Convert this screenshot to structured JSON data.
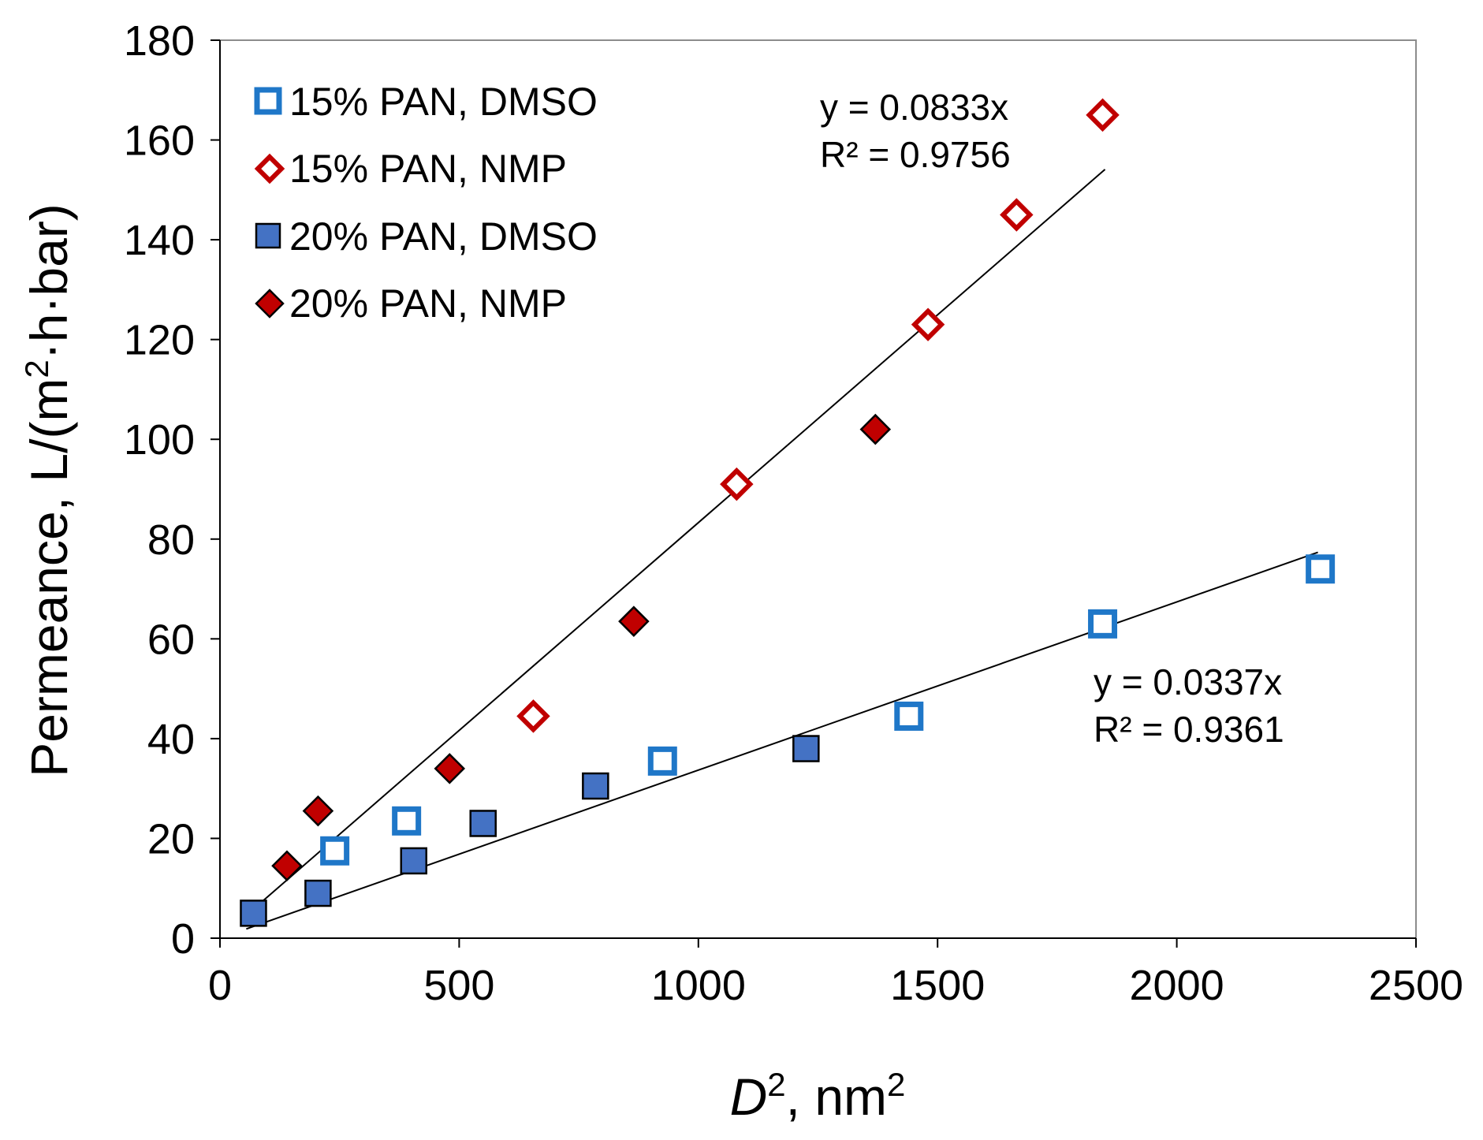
{
  "chart_data": {
    "type": "scatter",
    "xlabel": {
      "italic": "D",
      "sup1": "2",
      "rest": ", nm",
      "sup2": "2"
    },
    "ylabel": {
      "pre": "Permeance, L/(m",
      "sup": "2",
      "post": "·h·bar)"
    },
    "xlim": [
      0,
      2500
    ],
    "ylim": [
      0,
      180
    ],
    "x_ticks": [
      "0",
      "500",
      "1000",
      "1500",
      "2000",
      "2500"
    ],
    "y_ticks": [
      "0",
      "20",
      "40",
      "60",
      "80",
      "100",
      "120",
      "140",
      "160",
      "180"
    ],
    "grid": false,
    "legend_position": "top-left",
    "series": [
      {
        "name": "15% PAN, DMSO",
        "marker": "square-open",
        "color": "#1f77c8",
        "points": [
          [
            240,
            17.5
          ],
          [
            390,
            23.5
          ],
          [
            925,
            35.5
          ],
          [
            1440,
            44.5
          ],
          [
            1845,
            63
          ],
          [
            2300,
            74
          ]
        ]
      },
      {
        "name": "15% PAN, NMP",
        "marker": "diamond-open",
        "color": "#c00000",
        "points": [
          [
            655,
            44.5
          ],
          [
            1080,
            91
          ],
          [
            1480,
            123
          ],
          [
            1665,
            145
          ],
          [
            1845,
            165
          ]
        ]
      },
      {
        "name": "20% PAN, DMSO",
        "marker": "square-filled",
        "color": "#4472c4",
        "points": [
          [
            70,
            5
          ],
          [
            205,
            9
          ],
          [
            405,
            15.5
          ],
          [
            550,
            23
          ],
          [
            785,
            30.5
          ],
          [
            1225,
            38
          ]
        ]
      },
      {
        "name": "20% PAN, NMP",
        "marker": "diamond-filled",
        "color": "#c00000",
        "points": [
          [
            140,
            14.5
          ],
          [
            205,
            25.5
          ],
          [
            480,
            34
          ],
          [
            865,
            63.5
          ],
          [
            1370,
            102
          ]
        ]
      }
    ],
    "trendlines": [
      {
        "slope": 0.0833,
        "x_range": [
          55,
          1850
        ],
        "equation": "y = 0.0833x",
        "r2": "R² = 0.9756"
      },
      {
        "slope": 0.0337,
        "x_range": [
          55,
          2295
        ],
        "equation": "y = 0.0337x",
        "r2": "R² = 0.9361"
      }
    ]
  }
}
